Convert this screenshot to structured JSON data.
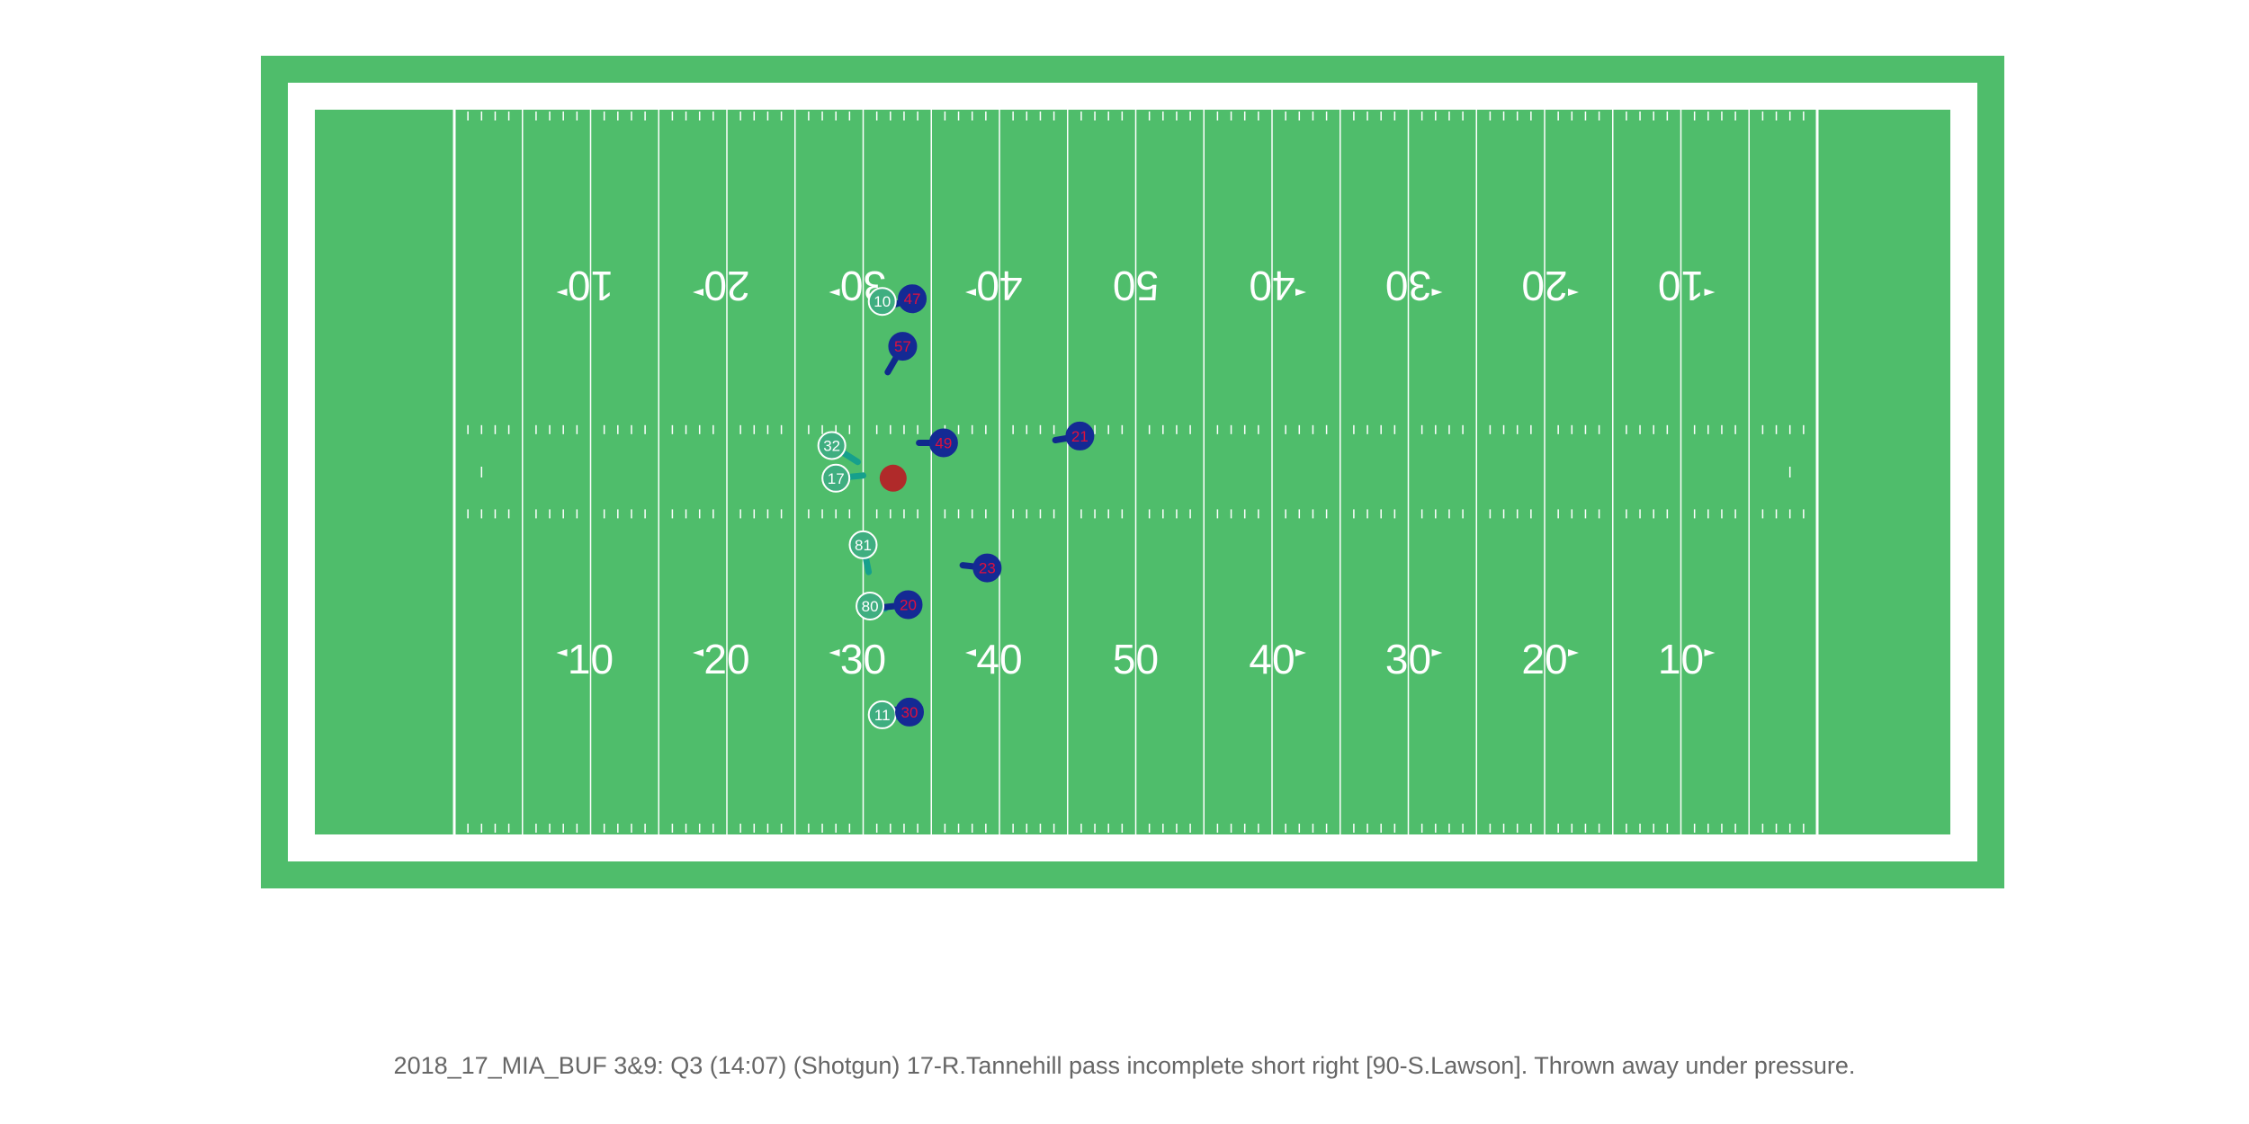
{
  "colors": {
    "turf": "#4fbd6b",
    "lines": "#ffffff",
    "offense_fill": "#3fae80",
    "offense_path": "#16a08c",
    "defense_fill": "#142a94",
    "defense_path": "#0f2a8c",
    "defense_text": "#e0103c",
    "football": "#b02a2a",
    "caption_text": "#666666"
  },
  "field": {
    "yard_numbers_bottom": [
      "10",
      "20",
      "30",
      "40",
      "50",
      "40",
      "30",
      "20",
      "10"
    ],
    "yard_numbers_top": [
      "10",
      "20",
      "30",
      "40",
      "50",
      "40",
      "30",
      "20",
      "10"
    ]
  },
  "play": {
    "description": "2018_17_MIA_BUF 3&9: Q3 (14:07) (Shotgun) 17-R.Tannehill pass incomplete short right [90-S.Lawson]. Thrown away under pressure.",
    "football": {
      "x": 32.2,
      "y": 26.2
    },
    "offense": [
      {
        "jersey": "10",
        "x": 31.4,
        "y": 39.2,
        "path": [
          [
            31.4,
            39.2
          ],
          [
            30.8,
            39.6
          ]
        ]
      },
      {
        "jersey": "32",
        "x": 27.7,
        "y": 28.6,
        "path": [
          [
            27.7,
            28.6
          ],
          [
            29.6,
            27.4
          ]
        ]
      },
      {
        "jersey": "17",
        "x": 28.0,
        "y": 26.2,
        "path": [
          [
            28.0,
            26.2
          ],
          [
            30.0,
            26.4
          ]
        ]
      },
      {
        "jersey": "81",
        "x": 30.0,
        "y": 21.3,
        "path": [
          [
            30.0,
            21.3
          ],
          [
            30.4,
            19.3
          ]
        ]
      },
      {
        "jersey": "80",
        "x": 30.5,
        "y": 16.8,
        "path": [
          [
            30.5,
            16.8
          ],
          [
            31.6,
            16.6
          ]
        ]
      },
      {
        "jersey": "11",
        "x": 31.4,
        "y": 8.8,
        "path": [
          [
            31.4,
            8.8
          ],
          [
            33.2,
            8.6
          ]
        ]
      }
    ],
    "defense": [
      {
        "jersey": "47",
        "x": 33.6,
        "y": 39.4,
        "path": [
          [
            33.6,
            39.4
          ],
          [
            31.8,
            38.8
          ]
        ]
      },
      {
        "jersey": "57",
        "x": 32.9,
        "y": 35.9,
        "path": [
          [
            32.9,
            35.9
          ],
          [
            31.8,
            34.0
          ]
        ]
      },
      {
        "jersey": "49",
        "x": 35.9,
        "y": 28.8,
        "path": [
          [
            35.9,
            28.8
          ],
          [
            34.1,
            28.8
          ]
        ]
      },
      {
        "jersey": "21",
        "x": 45.9,
        "y": 29.3,
        "path": [
          [
            45.9,
            29.3
          ],
          [
            44.1,
            29.0
          ]
        ]
      },
      {
        "jersey": "23",
        "x": 39.1,
        "y": 19.6,
        "path": [
          [
            39.1,
            19.6
          ],
          [
            37.3,
            19.8
          ]
        ]
      },
      {
        "jersey": "20",
        "x": 33.3,
        "y": 16.9,
        "path": [
          [
            33.3,
            16.9
          ],
          [
            31.4,
            16.7
          ]
        ]
      },
      {
        "jersey": "30",
        "x": 33.4,
        "y": 9.0,
        "path": [
          [
            33.4,
            9.0
          ],
          [
            31.6,
            9.3
          ]
        ]
      }
    ]
  }
}
